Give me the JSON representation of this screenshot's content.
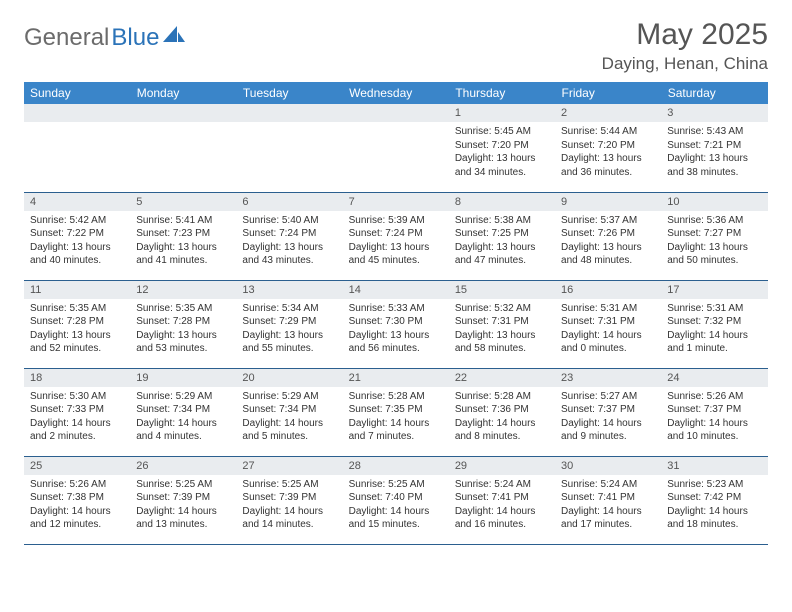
{
  "logo": {
    "text1": "General",
    "text2": "Blue"
  },
  "title": "May 2025",
  "location": "Daying, Henan, China",
  "colors": {
    "header_bg": "#3a85c9",
    "header_text": "#ffffff",
    "daynum_bg": "#e9ecef",
    "border": "#2b5f8f",
    "logo_gray": "#6b6b6b",
    "logo_blue": "#2b73b8",
    "title_color": "#555555"
  },
  "weekdays": [
    "Sunday",
    "Monday",
    "Tuesday",
    "Wednesday",
    "Thursday",
    "Friday",
    "Saturday"
  ],
  "weeks": [
    [
      {
        "n": "",
        "sr": "",
        "ss": "",
        "dl": ""
      },
      {
        "n": "",
        "sr": "",
        "ss": "",
        "dl": ""
      },
      {
        "n": "",
        "sr": "",
        "ss": "",
        "dl": ""
      },
      {
        "n": "",
        "sr": "",
        "ss": "",
        "dl": ""
      },
      {
        "n": "1",
        "sr": "Sunrise: 5:45 AM",
        "ss": "Sunset: 7:20 PM",
        "dl": "Daylight: 13 hours and 34 minutes."
      },
      {
        "n": "2",
        "sr": "Sunrise: 5:44 AM",
        "ss": "Sunset: 7:20 PM",
        "dl": "Daylight: 13 hours and 36 minutes."
      },
      {
        "n": "3",
        "sr": "Sunrise: 5:43 AM",
        "ss": "Sunset: 7:21 PM",
        "dl": "Daylight: 13 hours and 38 minutes."
      }
    ],
    [
      {
        "n": "4",
        "sr": "Sunrise: 5:42 AM",
        "ss": "Sunset: 7:22 PM",
        "dl": "Daylight: 13 hours and 40 minutes."
      },
      {
        "n": "5",
        "sr": "Sunrise: 5:41 AM",
        "ss": "Sunset: 7:23 PM",
        "dl": "Daylight: 13 hours and 41 minutes."
      },
      {
        "n": "6",
        "sr": "Sunrise: 5:40 AM",
        "ss": "Sunset: 7:24 PM",
        "dl": "Daylight: 13 hours and 43 minutes."
      },
      {
        "n": "7",
        "sr": "Sunrise: 5:39 AM",
        "ss": "Sunset: 7:24 PM",
        "dl": "Daylight: 13 hours and 45 minutes."
      },
      {
        "n": "8",
        "sr": "Sunrise: 5:38 AM",
        "ss": "Sunset: 7:25 PM",
        "dl": "Daylight: 13 hours and 47 minutes."
      },
      {
        "n": "9",
        "sr": "Sunrise: 5:37 AM",
        "ss": "Sunset: 7:26 PM",
        "dl": "Daylight: 13 hours and 48 minutes."
      },
      {
        "n": "10",
        "sr": "Sunrise: 5:36 AM",
        "ss": "Sunset: 7:27 PM",
        "dl": "Daylight: 13 hours and 50 minutes."
      }
    ],
    [
      {
        "n": "11",
        "sr": "Sunrise: 5:35 AM",
        "ss": "Sunset: 7:28 PM",
        "dl": "Daylight: 13 hours and 52 minutes."
      },
      {
        "n": "12",
        "sr": "Sunrise: 5:35 AM",
        "ss": "Sunset: 7:28 PM",
        "dl": "Daylight: 13 hours and 53 minutes."
      },
      {
        "n": "13",
        "sr": "Sunrise: 5:34 AM",
        "ss": "Sunset: 7:29 PM",
        "dl": "Daylight: 13 hours and 55 minutes."
      },
      {
        "n": "14",
        "sr": "Sunrise: 5:33 AM",
        "ss": "Sunset: 7:30 PM",
        "dl": "Daylight: 13 hours and 56 minutes."
      },
      {
        "n": "15",
        "sr": "Sunrise: 5:32 AM",
        "ss": "Sunset: 7:31 PM",
        "dl": "Daylight: 13 hours and 58 minutes."
      },
      {
        "n": "16",
        "sr": "Sunrise: 5:31 AM",
        "ss": "Sunset: 7:31 PM",
        "dl": "Daylight: 14 hours and 0 minutes."
      },
      {
        "n": "17",
        "sr": "Sunrise: 5:31 AM",
        "ss": "Sunset: 7:32 PM",
        "dl": "Daylight: 14 hours and 1 minute."
      }
    ],
    [
      {
        "n": "18",
        "sr": "Sunrise: 5:30 AM",
        "ss": "Sunset: 7:33 PM",
        "dl": "Daylight: 14 hours and 2 minutes."
      },
      {
        "n": "19",
        "sr": "Sunrise: 5:29 AM",
        "ss": "Sunset: 7:34 PM",
        "dl": "Daylight: 14 hours and 4 minutes."
      },
      {
        "n": "20",
        "sr": "Sunrise: 5:29 AM",
        "ss": "Sunset: 7:34 PM",
        "dl": "Daylight: 14 hours and 5 minutes."
      },
      {
        "n": "21",
        "sr": "Sunrise: 5:28 AM",
        "ss": "Sunset: 7:35 PM",
        "dl": "Daylight: 14 hours and 7 minutes."
      },
      {
        "n": "22",
        "sr": "Sunrise: 5:28 AM",
        "ss": "Sunset: 7:36 PM",
        "dl": "Daylight: 14 hours and 8 minutes."
      },
      {
        "n": "23",
        "sr": "Sunrise: 5:27 AM",
        "ss": "Sunset: 7:37 PM",
        "dl": "Daylight: 14 hours and 9 minutes."
      },
      {
        "n": "24",
        "sr": "Sunrise: 5:26 AM",
        "ss": "Sunset: 7:37 PM",
        "dl": "Daylight: 14 hours and 10 minutes."
      }
    ],
    [
      {
        "n": "25",
        "sr": "Sunrise: 5:26 AM",
        "ss": "Sunset: 7:38 PM",
        "dl": "Daylight: 14 hours and 12 minutes."
      },
      {
        "n": "26",
        "sr": "Sunrise: 5:25 AM",
        "ss": "Sunset: 7:39 PM",
        "dl": "Daylight: 14 hours and 13 minutes."
      },
      {
        "n": "27",
        "sr": "Sunrise: 5:25 AM",
        "ss": "Sunset: 7:39 PM",
        "dl": "Daylight: 14 hours and 14 minutes."
      },
      {
        "n": "28",
        "sr": "Sunrise: 5:25 AM",
        "ss": "Sunset: 7:40 PM",
        "dl": "Daylight: 14 hours and 15 minutes."
      },
      {
        "n": "29",
        "sr": "Sunrise: 5:24 AM",
        "ss": "Sunset: 7:41 PM",
        "dl": "Daylight: 14 hours and 16 minutes."
      },
      {
        "n": "30",
        "sr": "Sunrise: 5:24 AM",
        "ss": "Sunset: 7:41 PM",
        "dl": "Daylight: 14 hours and 17 minutes."
      },
      {
        "n": "31",
        "sr": "Sunrise: 5:23 AM",
        "ss": "Sunset: 7:42 PM",
        "dl": "Daylight: 14 hours and 18 minutes."
      }
    ]
  ]
}
